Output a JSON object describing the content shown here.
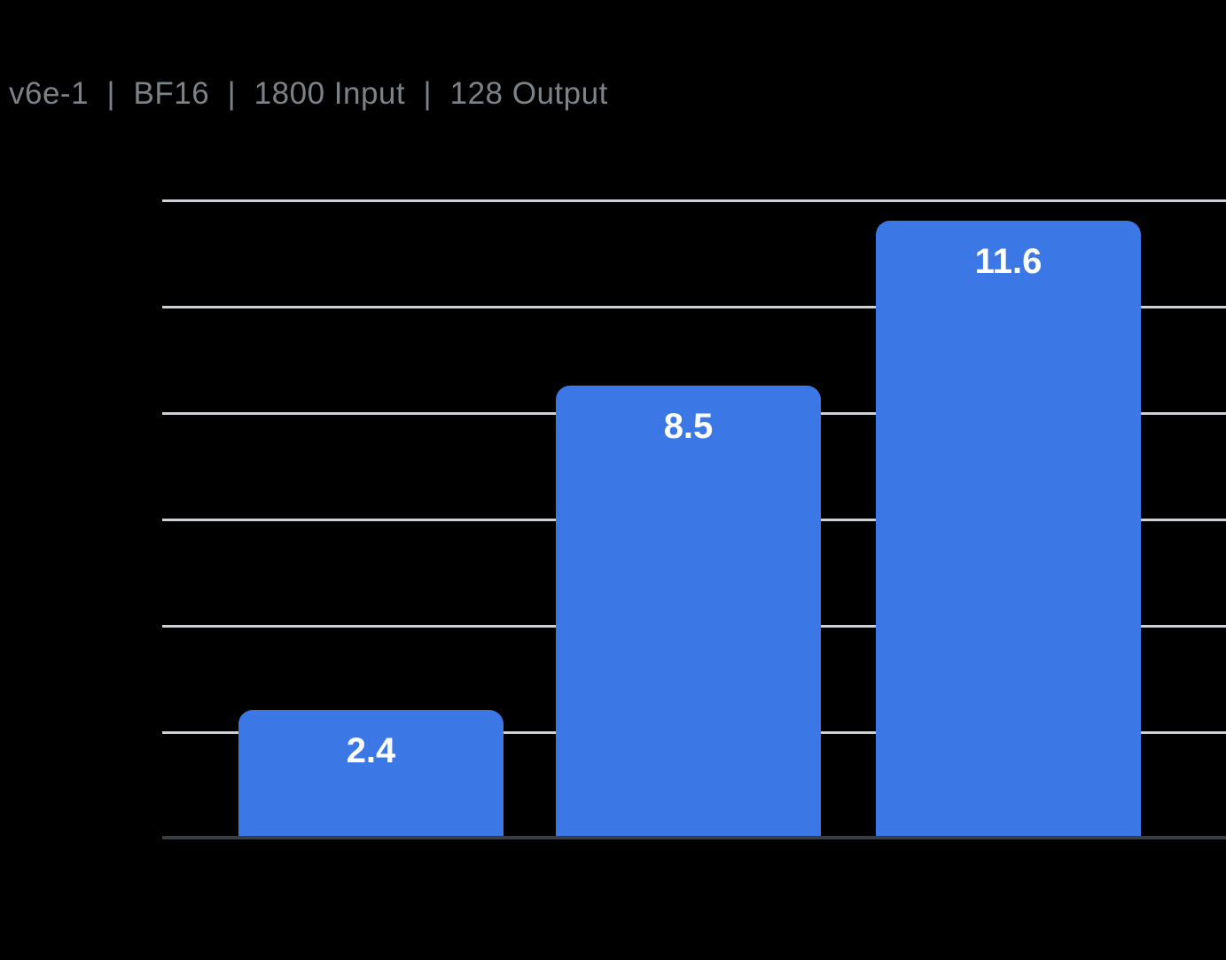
{
  "page": {
    "background_color": "#000000"
  },
  "chart_data": {
    "type": "bar",
    "title": "v6e-1  |  BF16  |  1800 Input  |  128 Output",
    "values": [
      2.4,
      8.5,
      11.6
    ],
    "value_labels": [
      "2.4",
      "8.5",
      "11.6"
    ],
    "ylim": [
      0,
      12
    ],
    "gridline_values": [
      2,
      4,
      6,
      8,
      10,
      12
    ],
    "grid": "horizontal",
    "axis_tick_labels_visible": false,
    "legend_position": "none",
    "colors": {
      "bar": "#3B78E6",
      "bar_label_text": "#FFFFFF",
      "gridline": "#CBD1D8",
      "axis_baseline": "#3A3E42",
      "title_text": "#7D8287",
      "background": "#000000"
    }
  }
}
